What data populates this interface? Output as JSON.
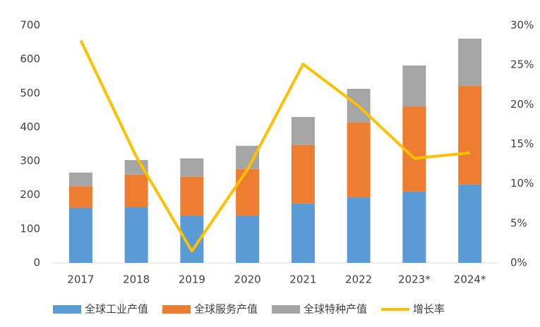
{
  "chart_data": {
    "type": "bar",
    "categories": [
      "2017",
      "2018",
      "2019",
      "2020",
      "2021",
      "2022",
      "2023*",
      "2024*"
    ],
    "series": [
      {
        "name": "全球工业产值",
        "color": "#5b9bd5",
        "values": [
          162,
          164,
          139,
          139,
          175,
          193,
          210,
          231
        ]
      },
      {
        "name": "全球服务产值",
        "color": "#ed7d31",
        "values": [
          64,
          96,
          115,
          138,
          172,
          221,
          251,
          291
        ]
      },
      {
        "name": "全球特种产值",
        "color": "#a5a5a5",
        "values": [
          40,
          43,
          54,
          68,
          83,
          99,
          121,
          139
        ]
      },
      {
        "name": "增长率",
        "color": "#ffc000",
        "type": "line",
        "axis": "y2",
        "values": [
          28.1,
          13.4,
          1.5,
          11.8,
          25.1,
          19.8,
          13.2,
          13.9
        ]
      }
    ],
    "stacked": true,
    "ylim": [
      0,
      700
    ],
    "yticks": [
      0,
      100,
      200,
      300,
      400,
      500,
      600,
      700
    ],
    "y2lim": [
      0,
      30
    ],
    "y2ticks": [
      {
        "value": 0,
        "label": "0%"
      },
      {
        "value": 5,
        "label": "5%"
      },
      {
        "value": 10,
        "label": "10%"
      },
      {
        "value": 15,
        "label": "15%"
      },
      {
        "value": 20,
        "label": "20%"
      },
      {
        "value": 25,
        "label": "25%"
      },
      {
        "value": 30,
        "label": "30%"
      }
    ],
    "grid": false,
    "legend": "bottom"
  }
}
